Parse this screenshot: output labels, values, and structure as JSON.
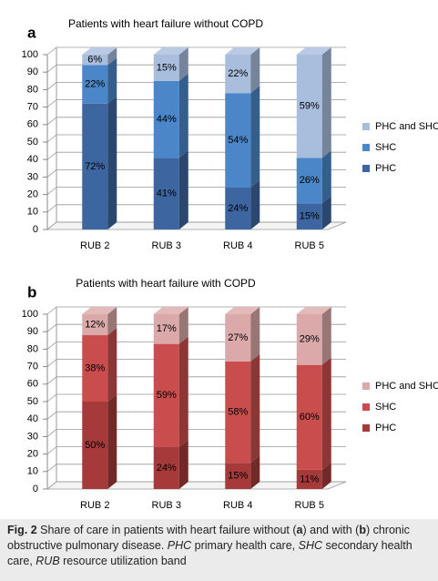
{
  "chart_data": [
    {
      "type": "bar",
      "stacked": true,
      "panel_label": "a",
      "title": "Patients with heart failure without COPD",
      "categories": [
        "RUB 2",
        "RUB 3",
        "RUB 4",
        "RUB 5"
      ],
      "series": [
        {
          "name": "PHC",
          "color": "#3d65a0",
          "values": [
            72,
            41,
            24,
            15
          ],
          "value_labels": [
            "72%",
            "41%",
            "24%",
            "15%"
          ]
        },
        {
          "name": "SHC",
          "color": "#4a86c8",
          "values": [
            22,
            44,
            54,
            26
          ],
          "value_labels": [
            "22%",
            "44%",
            "54%",
            "26%"
          ]
        },
        {
          "name": "PHC and SHC",
          "color": "#a9bddd",
          "values": [
            6,
            15,
            22,
            59
          ],
          "value_labels": [
            "6%",
            "15%",
            "22%",
            "59%"
          ]
        }
      ],
      "ylim": [
        0,
        100
      ],
      "yticks": [
        0,
        10,
        20,
        30,
        40,
        50,
        60,
        70,
        80,
        90,
        100
      ],
      "grid": true,
      "legend": "right"
    },
    {
      "type": "bar",
      "stacked": true,
      "panel_label": "b",
      "title": "Patients with heart failure with COPD",
      "categories": [
        "RUB 2",
        "RUB 3",
        "RUB 4",
        "RUB 5"
      ],
      "series": [
        {
          "name": "PHC",
          "color": "#a63a3a",
          "values": [
            50,
            24,
            15,
            11
          ],
          "value_labels": [
            "50%",
            "24%",
            "15%",
            "11%"
          ]
        },
        {
          "name": "SHC",
          "color": "#c94d4d",
          "values": [
            38,
            59,
            58,
            60
          ],
          "value_labels": [
            "38%",
            "59%",
            "58%",
            "60%"
          ]
        },
        {
          "name": "PHC and SHC",
          "color": "#dba9a9",
          "values": [
            12,
            17,
            27,
            29
          ],
          "value_labels": [
            "12%",
            "17%",
            "27%",
            "29%"
          ]
        }
      ],
      "ylim": [
        0,
        100
      ],
      "yticks": [
        0,
        10,
        20,
        30,
        40,
        50,
        60,
        70,
        80,
        90,
        100
      ],
      "grid": true,
      "legend": "right"
    }
  ],
  "caption": [
    "Fig. 2",
    " Share of care in patients with heart failure without (",
    "a",
    ") and with (",
    "b",
    ") chronic obstructive pulmonary disease. ",
    "PHC",
    " primary health care, ",
    "SHC",
    " secondary health care, ",
    "RUB",
    " resource utilization band"
  ]
}
